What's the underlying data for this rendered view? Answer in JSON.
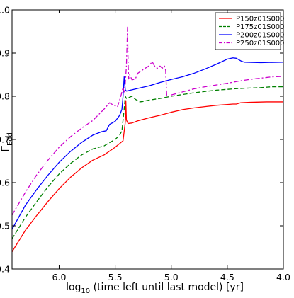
{
  "chart_data": {
    "type": "line",
    "xlabel": "log10 (time left until last model) [yr]",
    "xlabel_parts": {
      "base": "log",
      "sub": "10",
      "rest": " (time left until last model) [yr]"
    },
    "ylabel": "ΓEdd",
    "ylabel_parts": {
      "base": "Γ",
      "sub": "Edd"
    },
    "xlim": [
      6.42,
      4.0
    ],
    "ylim": [
      0.4,
      1.0
    ],
    "x_reversed": true,
    "xticks": [
      6.0,
      5.5,
      5.0,
      4.5,
      4.0
    ],
    "xtick_labels": [
      "6.0",
      "5.5",
      "5.0",
      "4.5",
      "4.0"
    ],
    "yticks": [
      0.4,
      0.5,
      0.6,
      0.7,
      0.8,
      0.9,
      1.0
    ],
    "ytick_labels": [
      "0.4",
      "0.5",
      "0.6",
      "0.7",
      "0.8",
      "0.9",
      "1.0"
    ],
    "grid": false,
    "legend_position": "top-right",
    "series": [
      {
        "name": "P150z01S000",
        "color": "#ff0000",
        "dash": "solid",
        "points": [
          [
            6.42,
            0.44
          ],
          [
            6.3,
            0.49
          ],
          [
            6.2,
            0.524
          ],
          [
            6.1,
            0.556
          ],
          [
            6.0,
            0.586
          ],
          [
            5.9,
            0.612
          ],
          [
            5.8,
            0.634
          ],
          [
            5.7,
            0.652
          ],
          [
            5.6,
            0.664
          ],
          [
            5.5,
            0.682
          ],
          [
            5.43,
            0.697
          ],
          [
            5.41,
            0.74
          ],
          [
            5.405,
            0.79
          ],
          [
            5.4,
            0.745
          ],
          [
            5.385,
            0.737
          ],
          [
            5.35,
            0.738
          ],
          [
            5.3,
            0.743
          ],
          [
            5.2,
            0.75
          ],
          [
            5.1,
            0.756
          ],
          [
            5.0,
            0.763
          ],
          [
            4.9,
            0.769
          ],
          [
            4.8,
            0.773
          ],
          [
            4.7,
            0.776
          ],
          [
            4.6,
            0.779
          ],
          [
            4.5,
            0.781
          ],
          [
            4.45,
            0.782
          ],
          [
            4.42,
            0.782
          ],
          [
            4.38,
            0.785
          ],
          [
            4.3,
            0.786
          ],
          [
            4.15,
            0.787
          ],
          [
            4.0,
            0.787
          ]
        ]
      },
      {
        "name": "P175z01S000",
        "color": "#008000",
        "dash": "dashed",
        "points": [
          [
            6.42,
            0.47
          ],
          [
            6.3,
            0.52
          ],
          [
            6.2,
            0.556
          ],
          [
            6.1,
            0.59
          ],
          [
            6.0,
            0.62
          ],
          [
            5.9,
            0.644
          ],
          [
            5.8,
            0.664
          ],
          [
            5.7,
            0.678
          ],
          [
            5.6,
            0.685
          ],
          [
            5.5,
            0.7
          ],
          [
            5.46,
            0.71
          ],
          [
            5.44,
            0.72
          ],
          [
            5.42,
            0.77
          ],
          [
            5.41,
            0.8
          ],
          [
            5.4,
            0.795
          ],
          [
            5.38,
            0.797
          ],
          [
            5.35,
            0.8
          ],
          [
            5.32,
            0.793
          ],
          [
            5.28,
            0.787
          ],
          [
            5.25,
            0.788
          ],
          [
            5.2,
            0.791
          ],
          [
            5.1,
            0.795
          ],
          [
            5.0,
            0.8
          ],
          [
            4.9,
            0.804
          ],
          [
            4.8,
            0.808
          ],
          [
            4.7,
            0.811
          ],
          [
            4.6,
            0.814
          ],
          [
            4.5,
            0.816
          ],
          [
            4.4,
            0.818
          ],
          [
            4.3,
            0.819
          ],
          [
            4.2,
            0.82
          ],
          [
            4.1,
            0.822
          ],
          [
            4.0,
            0.822
          ]
        ]
      },
      {
        "name": "P200z01S000",
        "color": "#0000ff",
        "dash": "solid",
        "points": [
          [
            6.42,
            0.492
          ],
          [
            6.3,
            0.548
          ],
          [
            6.2,
            0.584
          ],
          [
            6.1,
            0.617
          ],
          [
            6.0,
            0.647
          ],
          [
            5.9,
            0.672
          ],
          [
            5.8,
            0.693
          ],
          [
            5.7,
            0.71
          ],
          [
            5.62,
            0.718
          ],
          [
            5.58,
            0.72
          ],
          [
            5.55,
            0.735
          ],
          [
            5.5,
            0.742
          ],
          [
            5.46,
            0.756
          ],
          [
            5.44,
            0.77
          ],
          [
            5.43,
            0.8
          ],
          [
            5.42,
            0.845
          ],
          [
            5.415,
            0.83
          ],
          [
            5.41,
            0.815
          ],
          [
            5.4,
            0.812
          ],
          [
            5.35,
            0.815
          ],
          [
            5.3,
            0.818
          ],
          [
            5.2,
            0.824
          ],
          [
            5.1,
            0.832
          ],
          [
            5.0,
            0.839
          ],
          [
            4.9,
            0.845
          ],
          [
            4.8,
            0.853
          ],
          [
            4.7,
            0.863
          ],
          [
            4.6,
            0.874
          ],
          [
            4.5,
            0.886
          ],
          [
            4.45,
            0.889
          ],
          [
            4.42,
            0.888
          ],
          [
            4.38,
            0.882
          ],
          [
            4.35,
            0.879
          ],
          [
            4.2,
            0.878
          ],
          [
            4.0,
            0.879
          ]
        ]
      },
      {
        "name": "P250z01S000",
        "color": "#cc00cc",
        "dash": "dashdot",
        "points": [
          [
            6.42,
            0.525
          ],
          [
            6.3,
            0.578
          ],
          [
            6.2,
            0.618
          ],
          [
            6.1,
            0.652
          ],
          [
            6.0,
            0.682
          ],
          [
            5.9,
            0.706
          ],
          [
            5.8,
            0.726
          ],
          [
            5.7,
            0.744
          ],
          [
            5.6,
            0.77
          ],
          [
            5.55,
            0.785
          ],
          [
            5.52,
            0.78
          ],
          [
            5.5,
            0.778
          ],
          [
            5.48,
            0.775
          ],
          [
            5.45,
            0.8
          ],
          [
            5.43,
            0.82
          ],
          [
            5.42,
            0.81
          ],
          [
            5.41,
            0.83
          ],
          [
            5.4,
            0.87
          ],
          [
            5.39,
            0.96
          ],
          [
            5.385,
            0.88
          ],
          [
            5.38,
            0.84
          ],
          [
            5.37,
            0.85
          ],
          [
            5.35,
            0.838
          ],
          [
            5.32,
            0.84
          ],
          [
            5.3,
            0.853
          ],
          [
            5.25,
            0.862
          ],
          [
            5.2,
            0.87
          ],
          [
            5.17,
            0.88
          ],
          [
            5.14,
            0.866
          ],
          [
            5.12,
            0.865
          ],
          [
            5.1,
            0.87
          ],
          [
            5.08,
            0.865
          ],
          [
            5.06,
            0.87
          ],
          [
            5.05,
            0.86
          ],
          [
            5.04,
            0.8
          ],
          [
            5.03,
            0.8
          ],
          [
            5.0,
            0.803
          ],
          [
            4.9,
            0.81
          ],
          [
            4.8,
            0.817
          ],
          [
            4.7,
            0.822
          ],
          [
            4.6,
            0.826
          ],
          [
            4.5,
            0.83
          ],
          [
            4.4,
            0.835
          ],
          [
            4.3,
            0.839
          ],
          [
            4.2,
            0.842
          ],
          [
            4.1,
            0.845
          ],
          [
            4.0,
            0.846
          ]
        ]
      }
    ]
  }
}
